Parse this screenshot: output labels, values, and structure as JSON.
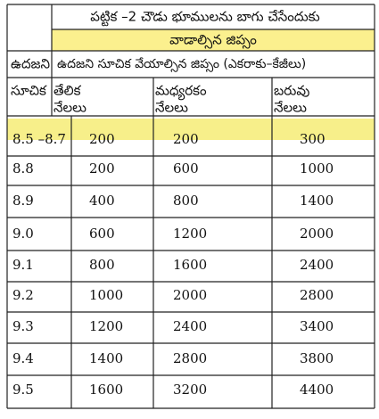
{
  "table": {
    "title_line1": "పట్టిక –2 చౌడు భూములను బాగు చేసేందుకు",
    "title_line2": "వాడాల్సిన జిప్సం",
    "header_col1_line1": "ఉదజని",
    "header_col1_line2": "సూచిక",
    "header_span": "ఉదజని సూచిక వేయాల్సిన జిప్సం (ఎకరాకు–కేజీలు)",
    "columns": [
      [
        "తేలిక",
        "నేలలు"
      ],
      [
        "మధ్యరకం",
        "నేలలు"
      ],
      [
        "బరువు",
        "నేలలు"
      ]
    ],
    "rows": [
      [
        "8.5 –8.7",
        "200",
        "200",
        "300"
      ],
      [
        "8.8",
        "200",
        "600",
        "1000"
      ],
      [
        "8.9",
        "400",
        "800",
        "1400"
      ],
      [
        "9.0",
        "600",
        "1200",
        "2000"
      ],
      [
        "9.1",
        "800",
        "1600",
        "2400"
      ],
      [
        "9.2",
        "1000",
        "2000",
        "2800"
      ],
      [
        "9.3",
        "1200",
        "2400",
        "3400"
      ],
      [
        "9.4",
        "1400",
        "2800",
        "3800"
      ],
      [
        "9.5",
        "1600",
        "3200",
        "4400"
      ]
    ]
  }
}
